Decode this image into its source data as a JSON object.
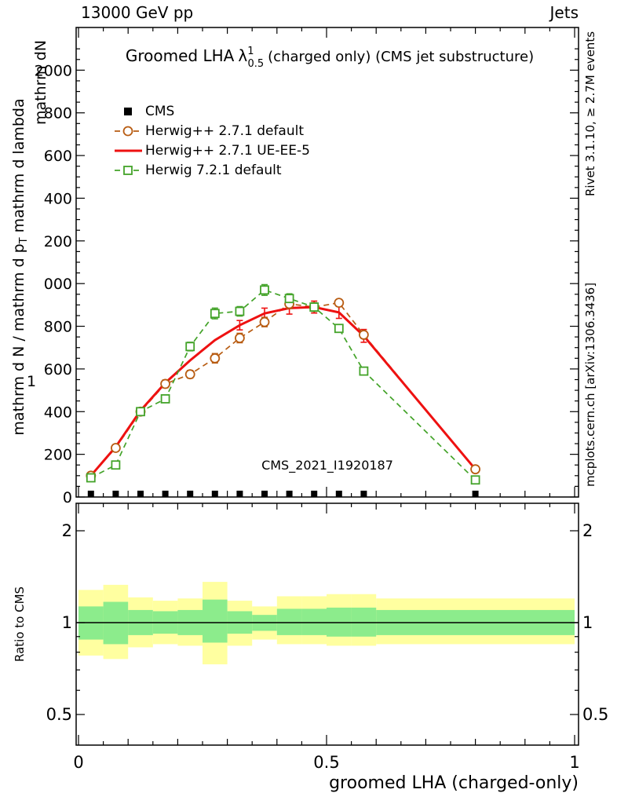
{
  "header": {
    "left": "13000 GeV pp",
    "right": "Jets"
  },
  "title": {
    "prefix": "Groomed LHA",
    "lambda": "λ",
    "sup": "1",
    "sub": "0.5",
    "suffix": "(charged only) (CMS jet substructure)"
  },
  "watermark": "CMS_2021_I1920187",
  "side_notes": {
    "rivet": "Rivet 3.1.10, ≥ 2.7M events",
    "mcplots": "mcplots.cern.ch [arXiv:1306.3436]"
  },
  "axes": {
    "x_title": "groomed LHA (charged-only)",
    "y_num": "mathrm dN",
    "y_main_a": "mathrm d N / mathrm d p",
    "y_main_sub": "T",
    "y_main_b": " mathrm d lambda",
    "y_one": "1",
    "ratio": "Ratio to CMS"
  },
  "legend": {
    "items": [
      {
        "label": "CMS"
      },
      {
        "label": "Herwig++ 2.7.1 default"
      },
      {
        "label": "Herwig++ 2.7.1 UE-EE-5"
      },
      {
        "label": "Herwig 7.2.1 default"
      }
    ]
  },
  "chart_data": {
    "type": "line",
    "title_plain": "Groomed LHA lambda_0.5^1 (charged only) (CMS jet substructure)",
    "xlabel": "groomed LHA (charged-only)",
    "xlim": [
      0,
      1
    ],
    "ylim": [
      0,
      2200
    ],
    "x_bin_centers": [
      0.025,
      0.075,
      0.125,
      0.175,
      0.225,
      0.275,
      0.325,
      0.375,
      0.425,
      0.475,
      0.525,
      0.575,
      0.8
    ],
    "series": [
      {
        "name": "CMS",
        "marker": "filled-square",
        "color": "#000000",
        "values": [
          15,
          15,
          15,
          15,
          15,
          15,
          15,
          15,
          15,
          15,
          15,
          15,
          15
        ]
      },
      {
        "name": "Herwig++ 2.7.1 default",
        "marker": "circle",
        "dash": "7 5",
        "color": "#b85c12",
        "width": 1.7,
        "values": [
          100,
          230,
          400,
          530,
          575,
          650,
          745,
          820,
          905,
          890,
          910,
          760,
          130
        ],
        "err": [
          0,
          0,
          0,
          18,
          18,
          22,
          22,
          22,
          22,
          0,
          0,
          0,
          0
        ]
      },
      {
        "name": "Herwig++ 2.7.1 UE-EE-5",
        "marker": "none",
        "color": "#ee1111",
        "width": 3,
        "values": [
          100,
          235,
          405,
          535,
          640,
          735,
          805,
          860,
          885,
          890,
          865,
          755,
          130
        ],
        "err": [
          0,
          0,
          0,
          0,
          0,
          0,
          22,
          25,
          28,
          28,
          28,
          30,
          0
        ]
      },
      {
        "name": "Herwig 7.2.1 default",
        "marker": "square",
        "dash": "7 5",
        "color": "#43a329",
        "width": 1.7,
        "values": [
          90,
          150,
          400,
          460,
          705,
          860,
          870,
          970,
          930,
          890,
          790,
          590,
          80
        ],
        "err": [
          0,
          0,
          16,
          16,
          20,
          25,
          22,
          25,
          22,
          20,
          0,
          0,
          0
        ]
      }
    ],
    "y_tick_labels": [
      {
        "v": 0,
        "t": "0"
      },
      {
        "v": 200,
        "t": "200"
      },
      {
        "v": 400,
        "t": "400"
      },
      {
        "v": 600,
        "t": "600"
      },
      {
        "v": 800,
        "t": "800"
      },
      {
        "v": 1000,
        "t": "000"
      },
      {
        "v": 1200,
        "t": "200"
      },
      {
        "v": 1400,
        "t": "400"
      },
      {
        "v": 1600,
        "t": "600"
      },
      {
        "v": 1800,
        "t": "800"
      },
      {
        "v": 2000,
        "t": "2000"
      }
    ],
    "x_tick_labels": [
      {
        "v": 0,
        "t": "0"
      },
      {
        "v": 0.5,
        "t": "0.5"
      },
      {
        "v": 1,
        "t": "1"
      }
    ],
    "ratio_tick_labels": [
      {
        "v": 0.5,
        "t": "0.5"
      },
      {
        "v": 1,
        "t": "1"
      },
      {
        "v": 2,
        "t": "2"
      }
    ],
    "ratio": {
      "scale": "log",
      "ylim": [
        0.4,
        2.46
      ],
      "unity": 1,
      "bins": [
        [
          0,
          0.05
        ],
        [
          0.05,
          0.1
        ],
        [
          0.1,
          0.15
        ],
        [
          0.15,
          0.2
        ],
        [
          0.2,
          0.25
        ],
        [
          0.25,
          0.3
        ],
        [
          0.3,
          0.35
        ],
        [
          0.35,
          0.4
        ],
        [
          0.4,
          0.45
        ],
        [
          0.45,
          0.5
        ],
        [
          0.5,
          0.55
        ],
        [
          0.55,
          0.6
        ],
        [
          0.6,
          1.0
        ]
      ],
      "yellow": [
        [
          0.78,
          1.28
        ],
        [
          0.76,
          1.33
        ],
        [
          0.83,
          1.21
        ],
        [
          0.85,
          1.18
        ],
        [
          0.84,
          1.2
        ],
        [
          0.73,
          1.36
        ],
        [
          0.84,
          1.18
        ],
        [
          0.88,
          1.13
        ],
        [
          0.85,
          1.22
        ],
        [
          0.85,
          1.22
        ],
        [
          0.84,
          1.24
        ],
        [
          0.84,
          1.24
        ],
        [
          0.85,
          1.2
        ]
      ],
      "green": [
        [
          0.88,
          1.13
        ],
        [
          0.85,
          1.17
        ],
        [
          0.91,
          1.1
        ],
        [
          0.92,
          1.09
        ],
        [
          0.91,
          1.1
        ],
        [
          0.86,
          1.19
        ],
        [
          0.92,
          1.09
        ],
        [
          0.94,
          1.06
        ],
        [
          0.91,
          1.11
        ],
        [
          0.91,
          1.11
        ],
        [
          0.9,
          1.12
        ],
        [
          0.9,
          1.12
        ],
        [
          0.91,
          1.1
        ]
      ]
    },
    "colors": {
      "cms": "#000000",
      "herwig_default": "#b85c12",
      "herwig_ueee5": "#ee1111",
      "herwig7": "#43a329",
      "band_yellow": "#ffffa0",
      "band_green": "#8cec8c",
      "gray_note": "#9a9a9a",
      "watermark": "#b5b5b5"
    }
  }
}
